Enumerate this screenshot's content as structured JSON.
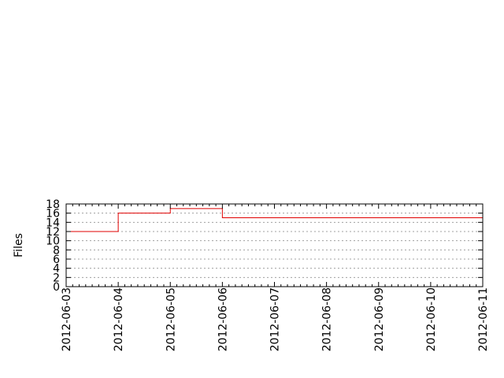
{
  "chart_data": {
    "type": "line",
    "step": true,
    "title": "",
    "xlabel": "",
    "ylabel": "Files",
    "ylim": [
      0,
      18
    ],
    "yticks": [
      0,
      2,
      4,
      6,
      8,
      10,
      12,
      14,
      16,
      18
    ],
    "xlim": [
      "2012-06-03",
      "2012-06-11"
    ],
    "xticks": [
      "2012-06-03",
      "2012-06-04",
      "2012-06-05",
      "2012-06-06",
      "2012-06-07",
      "2012-06-08",
      "2012-06-09",
      "2012-06-10",
      "2012-06-11"
    ],
    "grid": true,
    "series": [
      {
        "color": "#e00000",
        "x": [
          "2012-06-03",
          "2012-06-04",
          "2012-06-05",
          "2012-06-06",
          "2012-06-11"
        ],
        "values": [
          12,
          16,
          17,
          15,
          15
        ]
      }
    ]
  }
}
